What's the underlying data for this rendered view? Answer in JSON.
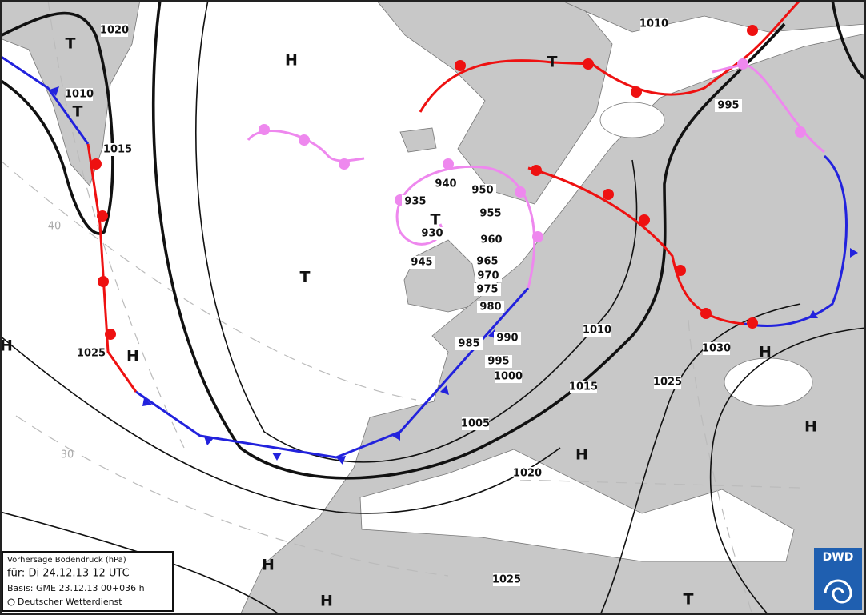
{
  "isobar_labels": [
    1020,
    1010,
    1010,
    1015,
    995,
    940,
    950,
    935,
    955,
    930,
    960,
    965,
    945,
    970,
    975,
    980,
    1010,
    985,
    990,
    1030,
    995,
    1025,
    1000,
    1015,
    1025,
    1005,
    1020,
    1025
  ],
  "pressure_centers": [
    "H",
    "H",
    "H",
    "H",
    "H",
    "H",
    "H",
    "H",
    "T",
    "T",
    "T",
    "T",
    "T",
    "T"
  ],
  "latitude_labels": [
    40,
    30
  ],
  "info_box": {
    "title": "Vorhersage Bodendruck (hPa)",
    "valid": "für:  Di 24.12.13  12 UTC",
    "basis": "Basis: GME  23.12.13 00+036 h",
    "credit": "Deutscher Wetterdienst"
  },
  "logo": "DWD"
}
